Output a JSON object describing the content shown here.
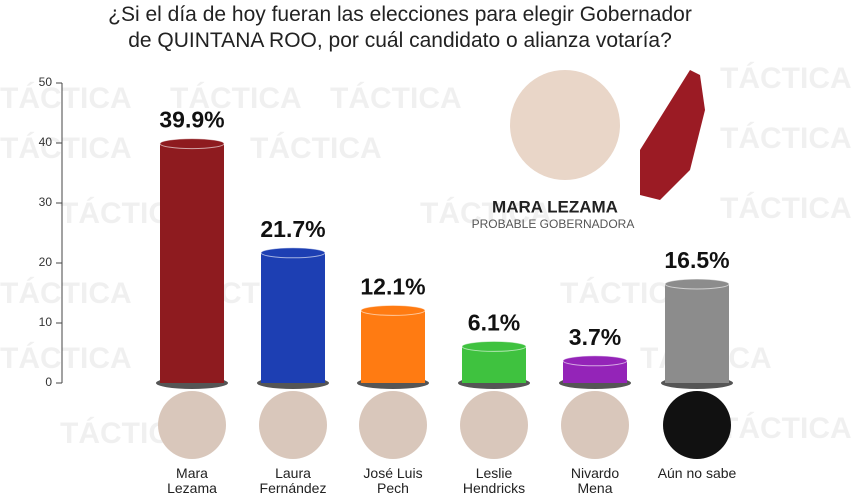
{
  "chart_data": {
    "type": "bar",
    "title": "¿Si el día de hoy fueran las elecciones para elegir Gobernador\nde QUINTANA ROO, por cuál candidato o alianza votaría?",
    "categories": [
      "Mara\nLezama",
      "Laura\nFernández",
      "José Luis\nPech",
      "Leslie\nHendricks",
      "Nivardo\nMena",
      "Aún no sabe"
    ],
    "values": [
      39.9,
      21.7,
      12.1,
      6.1,
      3.7,
      16.5
    ],
    "value_labels": [
      "39.9%",
      "21.7%",
      "12.1%",
      "6.1%",
      "3.7%",
      "16.5%"
    ],
    "colors": [
      "#8e1b1f",
      "#1d3fb3",
      "#ff7b12",
      "#3fc23f",
      "#9424b8",
      "#8c8c8c"
    ],
    "ylim": [
      0,
      50
    ],
    "yticks": [
      0,
      10,
      20,
      30,
      40,
      50
    ],
    "annotations": [
      "MARA LEZAMA",
      "PROBABLE GOBERNADORA"
    ],
    "watermark": "TÁCTICA"
  }
}
